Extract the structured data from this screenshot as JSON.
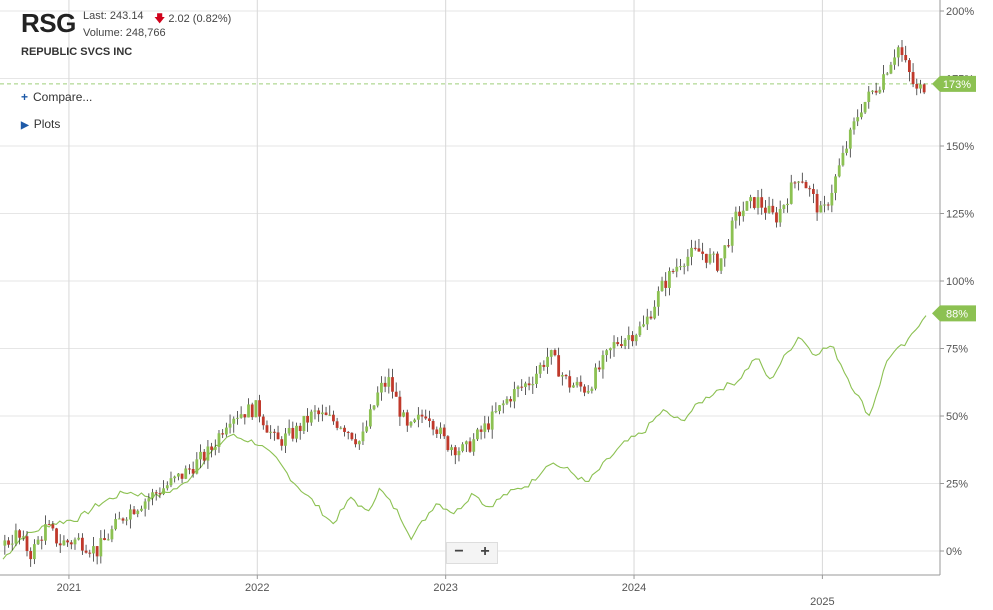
{
  "header": {
    "ticker": "RSG",
    "last_label": "Last: 243.14",
    "change_text": "2.02 (0.82%)",
    "volume_label": "Volume: 248,766",
    "company": "REPUBLIC SVCS INC"
  },
  "controls": {
    "compare_label": "Compare...",
    "plots_label": "Plots",
    "zoom_out": "−",
    "zoom_in": "+"
  },
  "colors": {
    "up": "#8cc152",
    "down": "#c0392b",
    "compare_line": "#8cc152",
    "badge": "#8cc152",
    "change_down": "#d0021b"
  },
  "chart_data": {
    "type": "line",
    "yaxis_ticks": [
      "0%",
      "25%",
      "50%",
      "75%",
      "100%",
      "125%",
      "150%",
      "175%",
      "200%"
    ],
    "yaxis_values": [
      0,
      25,
      50,
      75,
      100,
      125,
      150,
      175,
      200
    ],
    "ylim": [
      -8,
      202
    ],
    "xaxis_ticks": [
      "2021",
      "2022",
      "2023",
      "2024",
      "2025"
    ],
    "xaxis_values": [
      2021.0,
      2022.0,
      2023.0,
      2024.0,
      2025.0
    ],
    "xlim": [
      2020.65,
      2025.63
    ],
    "grid": true,
    "reference_line": 173,
    "badges": [
      {
        "label": "173%",
        "value": 173
      },
      {
        "label": "88%",
        "value": 88
      }
    ],
    "series": [
      {
        "type": "candlestick",
        "keypoints": [
          [
            2020.65,
            2
          ],
          [
            2020.72,
            6
          ],
          [
            2020.8,
            -1
          ],
          [
            2020.88,
            9
          ],
          [
            2020.95,
            3
          ],
          [
            2021.05,
            4
          ],
          [
            2021.15,
            0
          ],
          [
            2021.3,
            14
          ],
          [
            2021.45,
            21
          ],
          [
            2021.6,
            28
          ],
          [
            2021.75,
            37
          ],
          [
            2021.85,
            50
          ],
          [
            2022.0,
            53
          ],
          [
            2022.1,
            40
          ],
          [
            2022.2,
            44
          ],
          [
            2022.3,
            51
          ],
          [
            2022.45,
            47
          ],
          [
            2022.55,
            40
          ],
          [
            2022.65,
            60
          ],
          [
            2022.7,
            63
          ],
          [
            2022.8,
            44
          ],
          [
            2022.9,
            52
          ],
          [
            2023.0,
            40
          ],
          [
            2023.1,
            37
          ],
          [
            2023.2,
            45
          ],
          [
            2023.35,
            58
          ],
          [
            2023.45,
            63
          ],
          [
            2023.55,
            73
          ],
          [
            2023.65,
            62
          ],
          [
            2023.75,
            60
          ],
          [
            2023.9,
            77
          ],
          [
            2024.05,
            83
          ],
          [
            2024.15,
            98
          ],
          [
            2024.25,
            108
          ],
          [
            2024.35,
            111
          ],
          [
            2024.45,
            106
          ],
          [
            2024.55,
            125
          ],
          [
            2024.65,
            130
          ],
          [
            2024.75,
            123
          ],
          [
            2024.88,
            140
          ],
          [
            2025.0,
            124
          ],
          [
            2025.1,
            144
          ],
          [
            2025.2,
            164
          ],
          [
            2025.3,
            173
          ],
          [
            2025.4,
            187
          ],
          [
            2025.5,
            170
          ],
          [
            2025.55,
            173
          ]
        ]
      },
      {
        "type": "line",
        "keypoints": [
          [
            2020.65,
            -3
          ],
          [
            2020.75,
            5
          ],
          [
            2020.9,
            10
          ],
          [
            2021.05,
            12
          ],
          [
            2021.15,
            17
          ],
          [
            2021.3,
            22
          ],
          [
            2021.45,
            20
          ],
          [
            2021.6,
            24
          ],
          [
            2021.75,
            36
          ],
          [
            2021.85,
            43
          ],
          [
            2022.0,
            40
          ],
          [
            2022.1,
            34
          ],
          [
            2022.2,
            25
          ],
          [
            2022.3,
            18
          ],
          [
            2022.4,
            10
          ],
          [
            2022.5,
            20
          ],
          [
            2022.58,
            14
          ],
          [
            2022.65,
            23
          ],
          [
            2022.75,
            14
          ],
          [
            2022.82,
            5
          ],
          [
            2022.95,
            18
          ],
          [
            2023.05,
            14
          ],
          [
            2023.15,
            22
          ],
          [
            2023.22,
            16
          ],
          [
            2023.32,
            21
          ],
          [
            2023.45,
            25
          ],
          [
            2023.55,
            33
          ],
          [
            2023.65,
            30
          ],
          [
            2023.75,
            25
          ],
          [
            2023.85,
            33
          ],
          [
            2023.95,
            40
          ],
          [
            2024.05,
            44
          ],
          [
            2024.15,
            52
          ],
          [
            2024.25,
            48
          ],
          [
            2024.35,
            55
          ],
          [
            2024.45,
            60
          ],
          [
            2024.55,
            63
          ],
          [
            2024.65,
            72
          ],
          [
            2024.72,
            63
          ],
          [
            2024.8,
            72
          ],
          [
            2024.88,
            80
          ],
          [
            2024.95,
            73
          ],
          [
            2025.05,
            76
          ],
          [
            2025.15,
            62
          ],
          [
            2025.25,
            50
          ],
          [
            2025.35,
            72
          ],
          [
            2025.45,
            77
          ],
          [
            2025.52,
            85
          ],
          [
            2025.55,
            88
          ]
        ]
      }
    ]
  }
}
